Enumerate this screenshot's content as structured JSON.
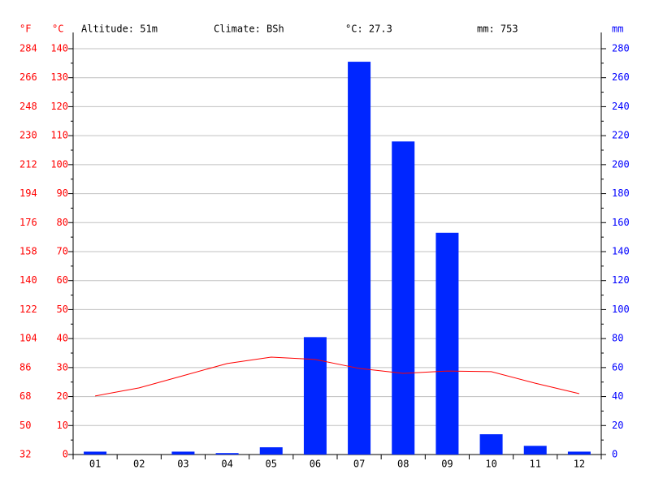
{
  "chart_data": {
    "type": "combo",
    "annotations": [
      "Altitude: 51m",
      "Climate: BSh",
      "°C: 27.3",
      "mm: 753"
    ],
    "y3label": "°F",
    "ylabel": "°C",
    "y2label": "mm",
    "categories": [
      "01",
      "02",
      "03",
      "04",
      "05",
      "06",
      "07",
      "08",
      "09",
      "10",
      "11",
      "12"
    ],
    "series": [
      {
        "name": "mm",
        "type": "bar",
        "axis": "y2",
        "color": "#0026ff",
        "values": [
          2,
          0,
          2,
          1,
          5,
          81,
          271,
          216,
          153,
          14,
          6,
          2
        ]
      },
      {
        "name": "°C",
        "type": "line",
        "axis": "y",
        "color": "#ff0000",
        "values": [
          20.2,
          23,
          27.2,
          31.4,
          33.6,
          32.8,
          29.7,
          28,
          28.8,
          28.6,
          24.6,
          21
        ]
      }
    ],
    "ylim": [
      0,
      140
    ],
    "yticks": [
      0,
      10,
      20,
      30,
      40,
      50,
      60,
      70,
      80,
      90,
      100,
      110,
      120,
      130,
      140
    ],
    "y2lim": [
      0,
      280
    ],
    "y2ticks": [
      0,
      20,
      40,
      60,
      80,
      100,
      120,
      140,
      160,
      180,
      200,
      220,
      240,
      260,
      280
    ],
    "y3lim": [
      32,
      284
    ],
    "y3ticks": [
      32,
      50,
      68,
      86,
      104,
      122,
      140,
      158,
      176,
      194,
      212,
      230,
      248,
      266,
      284
    ],
    "grid": true,
    "left_color": "#ff0000",
    "right_color": "#0000ff"
  }
}
